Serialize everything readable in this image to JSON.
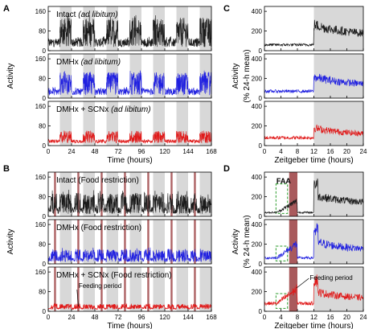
{
  "colors": {
    "intact": "#1a1a1a",
    "dmhx": "#2020e0",
    "dmhx_scnx": "#e01818",
    "dark_phase": "#d8d8d8",
    "feeding": "#a0484a",
    "faa_box": "#2e9e2e"
  },
  "chart_data": [
    {
      "panel": "A",
      "type": "line",
      "ylabel": "Activity",
      "xlabel": "Time (hours)",
      "x_range": [
        0,
        168
      ],
      "x_ticks": [
        "0",
        "24",
        "48",
        "72",
        "96",
        "120",
        "144",
        "168"
      ],
      "y_range": [
        0,
        180
      ],
      "y_ticks": [
        "0",
        "80",
        "160"
      ],
      "dark_shading": "12 h dark bands each 24 h cycle",
      "series": [
        {
          "name": "Intact (ad libitum)",
          "label_main": "Intact",
          "label_paren": "(ad libitum)",
          "color_key": "intact",
          "typical_peak": 140,
          "typical_base": 15
        },
        {
          "name": "DMHx (ad libitum)",
          "label_main": "DMHx",
          "label_paren": "(ad libitum)",
          "color_key": "dmhx",
          "typical_peak": 110,
          "typical_base": 12
        },
        {
          "name": "DMHx + SCNx (ad libitum)",
          "label_main": "DMHx + SCNx",
          "label_paren": "(ad libitum)",
          "color_key": "dmhx_scnx",
          "typical_peak": 60,
          "typical_base": 10
        }
      ]
    },
    {
      "panel": "B",
      "type": "line",
      "ylabel": "Activity",
      "xlabel": "Time (hours)",
      "x_range": [
        0,
        168
      ],
      "x_ticks": [
        "0",
        "24",
        "48",
        "72",
        "96",
        "120",
        "144",
        "168"
      ],
      "y_range": [
        0,
        180
      ],
      "y_ticks": [
        "0",
        "80",
        "160"
      ],
      "feeding_hours": [
        6,
        8
      ],
      "annotation": "Feeding period",
      "series": [
        {
          "name": "Intact (Food restriction)",
          "label_main": "Intact",
          "label_paren": "(Food restriction)",
          "color_key": "intact",
          "typical_peak": 150,
          "typical_base": 10
        },
        {
          "name": "DMHx (Food restriction)",
          "label_main": "DMHx",
          "label_paren": "(Food restriction)",
          "color_key": "dmhx",
          "typical_peak": 90,
          "typical_base": 8
        },
        {
          "name": "DMHx + SCNx (Food restriction)",
          "label_main": "DMHx + SCNx",
          "label_paren": "(Food restriction)",
          "color_key": "dmhx_scnx",
          "typical_peak": 40,
          "typical_base": 8
        }
      ]
    },
    {
      "panel": "C",
      "type": "line",
      "ylabel_line1": "Activity",
      "ylabel_line2": "(% 24-h mean)",
      "xlabel": "Zeitgeber time (hours)",
      "x_range": [
        0,
        24
      ],
      "x_ticks": [
        "0",
        "4",
        "8",
        "12",
        "16",
        "20",
        "24"
      ],
      "y_range": [
        0,
        450
      ],
      "y_ticks": [
        "0",
        "200",
        "400"
      ],
      "dark_phase_hours": [
        12,
        24
      ],
      "series": [
        {
          "name": "Intact",
          "color_key": "intact",
          "light_level": 60,
          "dark_level": 220
        },
        {
          "name": "DMHx",
          "color_key": "dmhx",
          "light_level": 70,
          "dark_level": 180
        },
        {
          "name": "DMHx + SCNx",
          "color_key": "dmhx_scnx",
          "light_level": 80,
          "dark_level": 150
        }
      ]
    },
    {
      "panel": "D",
      "type": "line",
      "ylabel_line1": "Activity",
      "ylabel_line2": "(% 24-h mean)",
      "xlabel": "Zeitgeber time (hours)",
      "x_range": [
        0,
        24
      ],
      "x_ticks": [
        "0",
        "4",
        "8",
        "12",
        "16",
        "20",
        "24"
      ],
      "y_range": [
        0,
        450
      ],
      "y_ticks": [
        "0",
        "200",
        "400"
      ],
      "dark_phase_hours": [
        12,
        24
      ],
      "feeding_hours": [
        6,
        8
      ],
      "faa_label": "FAA",
      "annotation": "Feeding period",
      "series": [
        {
          "name": "Intact",
          "color_key": "intact",
          "light_level": 40,
          "dark_level": 180
        },
        {
          "name": "DMHx",
          "color_key": "dmhx",
          "light_level": 60,
          "dark_level": 190
        },
        {
          "name": "DMHx + SCNx",
          "color_key": "dmhx_scnx",
          "light_level": 80,
          "dark_level": 170
        }
      ]
    }
  ]
}
